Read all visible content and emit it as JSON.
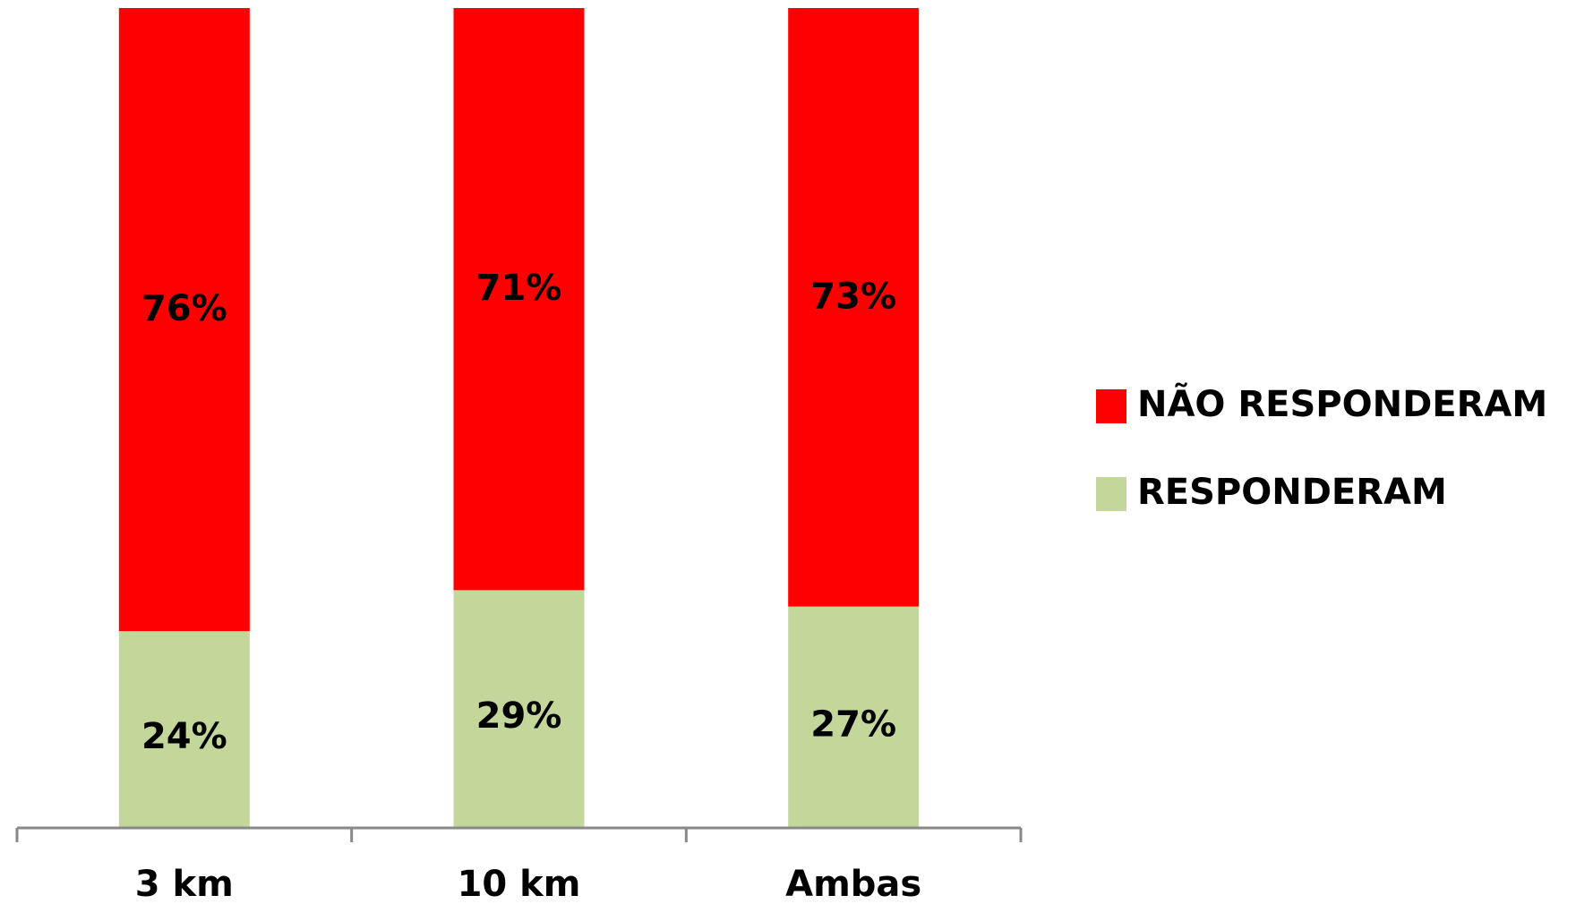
{
  "chart_data": {
    "type": "stacked_bar",
    "categories": [
      "3 km",
      "10 km",
      "Ambas"
    ],
    "series": [
      {
        "name": "RESPONDERAM",
        "color": "#c4d79b",
        "values": [
          24,
          29,
          27
        ],
        "value_labels": [
          "24%",
          "29%",
          "27%"
        ]
      },
      {
        "name": "NÃO RESPONDERAM",
        "color": "#ff0000",
        "values": [
          76,
          71,
          73
        ],
        "value_labels": [
          "76%",
          "71%",
          "73%"
        ]
      }
    ],
    "ylim": [
      0,
      100
    ],
    "legend": "right"
  }
}
